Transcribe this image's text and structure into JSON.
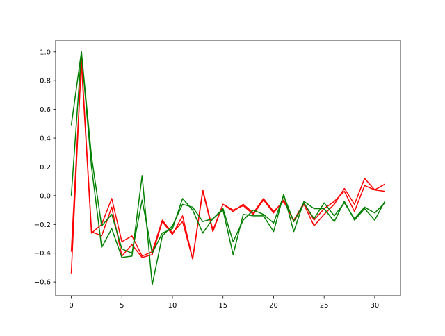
{
  "chart_data": {
    "type": "line",
    "x": [
      0,
      1,
      2,
      3,
      4,
      5,
      6,
      7,
      8,
      9,
      10,
      11,
      12,
      13,
      14,
      15,
      16,
      17,
      18,
      19,
      20,
      21,
      22,
      23,
      24,
      25,
      26,
      27,
      28,
      29,
      30,
      31
    ],
    "series": [
      {
        "color": "#ff0000",
        "values": [
          -0.54,
          0.95,
          -0.25,
          -0.28,
          -0.08,
          -0.42,
          -0.34,
          -0.43,
          -0.41,
          -0.18,
          -0.27,
          -0.14,
          -0.44,
          0.03,
          -0.25,
          -0.06,
          -0.1,
          -0.07,
          -0.13,
          -0.03,
          -0.12,
          -0.03,
          -0.18,
          -0.06,
          -0.21,
          -0.13,
          -0.06,
          0.05,
          -0.06,
          0.12,
          0.04,
          0.08
        ]
      },
      {
        "color": "#ff0000",
        "values": [
          -0.39,
          0.92,
          -0.26,
          -0.2,
          -0.02,
          -0.32,
          -0.28,
          -0.42,
          -0.39,
          -0.17,
          -0.26,
          -0.18,
          -0.44,
          0.04,
          -0.24,
          -0.06,
          -0.11,
          -0.06,
          -0.12,
          -0.02,
          -0.11,
          -0.04,
          -0.17,
          -0.05,
          -0.17,
          -0.09,
          -0.04,
          0.03,
          -0.11,
          0.07,
          0.04,
          0.03
        ]
      },
      {
        "color": "#008000",
        "values": [
          0.49,
          1.0,
          0.2,
          -0.36,
          -0.23,
          -0.43,
          -0.42,
          0.14,
          -0.62,
          -0.28,
          -0.21,
          -0.06,
          -0.08,
          -0.18,
          -0.16,
          -0.1,
          -0.41,
          -0.13,
          -0.14,
          -0.14,
          -0.25,
          0.01,
          -0.25,
          -0.04,
          -0.09,
          -0.09,
          -0.18,
          -0.04,
          -0.17,
          -0.09,
          -0.17,
          -0.04
        ]
      },
      {
        "color": "#008000",
        "values": [
          0.0,
          1.0,
          0.27,
          -0.21,
          -0.13,
          -0.37,
          -0.4,
          -0.03,
          -0.4,
          -0.26,
          -0.23,
          -0.02,
          -0.1,
          -0.26,
          -0.16,
          -0.09,
          -0.32,
          -0.17,
          -0.1,
          -0.13,
          -0.19,
          0.0,
          -0.18,
          -0.05,
          -0.16,
          -0.05,
          -0.14,
          -0.05,
          -0.16,
          -0.08,
          -0.12,
          -0.05
        ]
      }
    ],
    "xlim": [
      -1.55,
      32.55
    ],
    "ylim": [
      -0.696,
      1.081
    ],
    "xticks": [
      0,
      5,
      10,
      15,
      20,
      25,
      30
    ],
    "yticks": [
      {
        "value": -0.6,
        "label": "−0.6"
      },
      {
        "value": -0.4,
        "label": "−0.4"
      },
      {
        "value": -0.2,
        "label": "−0.2"
      },
      {
        "value": 0,
        "label": "0.0"
      },
      {
        "value": 0.2,
        "label": "0.2"
      },
      {
        "value": 0.4,
        "label": "0.4"
      },
      {
        "value": 0.6,
        "label": "0.6"
      },
      {
        "value": 0.8,
        "label": "0.8"
      },
      {
        "value": 1.0,
        "label": "1.0"
      }
    ]
  }
}
